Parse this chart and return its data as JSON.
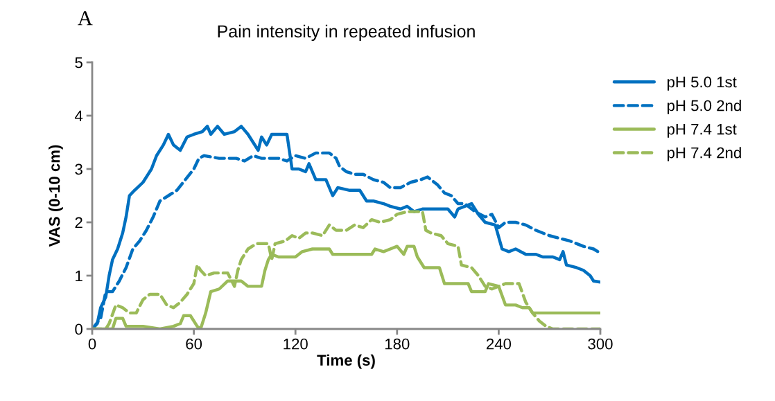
{
  "chart_data": {
    "type": "line",
    "title": "Pain intensity in repeated infusion",
    "xlabel": "Time (s)",
    "ylabel": "VAS (0-10 cm)",
    "annotations": [
      "A"
    ],
    "xlim": [
      0,
      300
    ],
    "xticks": [
      0,
      60,
      120,
      180,
      240,
      300
    ],
    "ylim": [
      0,
      5
    ],
    "yticks": [
      0,
      1,
      2,
      3,
      4,
      5
    ],
    "grid": false,
    "legend": "right",
    "marker": "none",
    "series": [
      {
        "name": "pH 5.0 1st",
        "color": "#0070c0",
        "line_style": "solid",
        "x": [
          0,
          3,
          5,
          8,
          10,
          12,
          15,
          18,
          20,
          22,
          25,
          30,
          35,
          38,
          42,
          45,
          48,
          52,
          56,
          60,
          65,
          68,
          70,
          74,
          78,
          84,
          88,
          92,
          95,
          98,
          100,
          103,
          106,
          115,
          118,
          122,
          126,
          128,
          132,
          138,
          142,
          145,
          152,
          158,
          162,
          166,
          172,
          176,
          182,
          186,
          190,
          195,
          200,
          210,
          214,
          216,
          220,
          224,
          228,
          232,
          238,
          242,
          246,
          250,
          256,
          262,
          266,
          272,
          276,
          278,
          280,
          286,
          290,
          294,
          296,
          300
        ],
        "values": [
          0,
          0.1,
          0.4,
          0.6,
          1.0,
          1.3,
          1.5,
          1.8,
          2.1,
          2.5,
          2.6,
          2.75,
          3.0,
          3.25,
          3.45,
          3.65,
          3.45,
          3.35,
          3.6,
          3.65,
          3.7,
          3.8,
          3.65,
          3.8,
          3.65,
          3.7,
          3.8,
          3.65,
          3.5,
          3.35,
          3.6,
          3.45,
          3.65,
          3.65,
          3.0,
          3.0,
          2.95,
          3.1,
          2.8,
          2.8,
          2.5,
          2.65,
          2.6,
          2.6,
          2.4,
          2.4,
          2.35,
          2.3,
          2.25,
          2.3,
          2.2,
          2.25,
          2.25,
          2.25,
          2.1,
          2.25,
          2.3,
          2.35,
          2.15,
          2.0,
          1.95,
          1.5,
          1.45,
          1.5,
          1.4,
          1.4,
          1.35,
          1.35,
          1.3,
          1.45,
          1.2,
          1.15,
          1.1,
          1.0,
          0.9,
          0.88
        ]
      },
      {
        "name": "pH 5.0 2nd",
        "color": "#0070c0",
        "line_style": "dashed",
        "x": [
          0,
          5,
          8,
          12,
          16,
          20,
          24,
          28,
          32,
          36,
          40,
          45,
          50,
          55,
          60,
          63,
          66,
          75,
          85,
          90,
          95,
          100,
          110,
          115,
          120,
          126,
          132,
          140,
          144,
          146,
          150,
          155,
          160,
          166,
          172,
          176,
          182,
          188,
          194,
          198,
          204,
          208,
          212,
          216,
          220,
          226,
          232,
          236,
          240,
          244,
          250,
          256,
          262,
          270,
          276,
          282,
          290,
          296,
          300
        ],
        "values": [
          0,
          0.2,
          0.7,
          0.7,
          0.9,
          1.15,
          1.5,
          1.65,
          1.85,
          2.1,
          2.4,
          2.5,
          2.6,
          2.8,
          3.0,
          3.2,
          3.25,
          3.2,
          3.2,
          3.15,
          3.25,
          3.2,
          3.2,
          3.15,
          3.25,
          3.2,
          3.3,
          3.3,
          3.2,
          3.05,
          2.95,
          2.9,
          2.9,
          2.8,
          2.75,
          2.65,
          2.65,
          2.75,
          2.8,
          2.85,
          2.7,
          2.55,
          2.5,
          2.35,
          2.35,
          2.2,
          2.1,
          2.15,
          1.9,
          2.0,
          2.0,
          1.95,
          1.85,
          1.75,
          1.7,
          1.65,
          1.55,
          1.5,
          1.42
        ]
      },
      {
        "name": "pH 7.4 1st",
        "color": "#9bbb59",
        "line_style": "solid",
        "x": [
          0,
          12,
          14,
          18,
          20,
          30,
          40,
          48,
          52,
          54,
          58,
          62,
          64,
          67,
          70,
          75,
          80,
          88,
          92,
          100,
          102,
          104,
          106,
          110,
          120,
          124,
          130,
          140,
          142,
          150,
          165,
          167,
          172,
          176,
          180,
          184,
          186,
          190,
          192,
          196,
          205,
          208,
          215,
          222,
          224,
          232,
          234,
          240,
          244,
          250,
          254,
          258,
          260,
          300
        ],
        "values": [
          0,
          0.0,
          0.2,
          0.2,
          0.05,
          0.05,
          0.0,
          0.05,
          0.1,
          0.25,
          0.25,
          0.05,
          0.0,
          0.3,
          0.7,
          0.75,
          0.9,
          0.9,
          0.8,
          0.8,
          1.1,
          1.3,
          1.4,
          1.35,
          1.35,
          1.45,
          1.5,
          1.5,
          1.4,
          1.4,
          1.4,
          1.5,
          1.45,
          1.5,
          1.55,
          1.4,
          1.55,
          1.55,
          1.35,
          1.15,
          1.15,
          0.85,
          0.85,
          0.85,
          0.7,
          0.7,
          0.85,
          0.8,
          0.45,
          0.45,
          0.4,
          0.4,
          0.3,
          0.3
        ]
      },
      {
        "name": "pH 7.4 2nd",
        "color": "#9bbb59",
        "line_style": "dashed",
        "x": [
          0,
          8,
          10,
          14,
          18,
          22,
          26,
          30,
          34,
          40,
          44,
          48,
          52,
          56,
          60,
          62,
          64,
          67,
          72,
          80,
          84,
          86,
          88,
          92,
          97,
          104,
          106,
          108,
          114,
          118,
          122,
          126,
          130,
          136,
          140,
          144,
          150,
          155,
          160,
          165,
          170,
          176,
          180,
          186,
          195,
          197,
          200,
          206,
          210,
          216,
          218,
          224,
          228,
          232,
          236,
          244,
          252,
          256,
          260,
          264,
          268,
          272,
          300
        ],
        "values": [
          0,
          0.0,
          0.1,
          0.45,
          0.4,
          0.3,
          0.3,
          0.55,
          0.65,
          0.65,
          0.45,
          0.4,
          0.5,
          0.65,
          0.85,
          1.2,
          1.1,
          1.0,
          1.05,
          1.05,
          0.8,
          1.1,
          1.3,
          1.5,
          1.6,
          1.6,
          1.3,
          1.6,
          1.65,
          1.75,
          1.7,
          1.8,
          1.8,
          1.75,
          1.95,
          1.85,
          1.85,
          1.95,
          1.9,
          2.05,
          2.0,
          2.05,
          2.15,
          2.2,
          2.2,
          1.85,
          1.8,
          1.75,
          1.6,
          1.55,
          1.2,
          1.15,
          1.0,
          0.8,
          0.75,
          0.85,
          0.85,
          0.5,
          0.3,
          0.15,
          0.05,
          0.0,
          0.0
        ]
      }
    ]
  }
}
